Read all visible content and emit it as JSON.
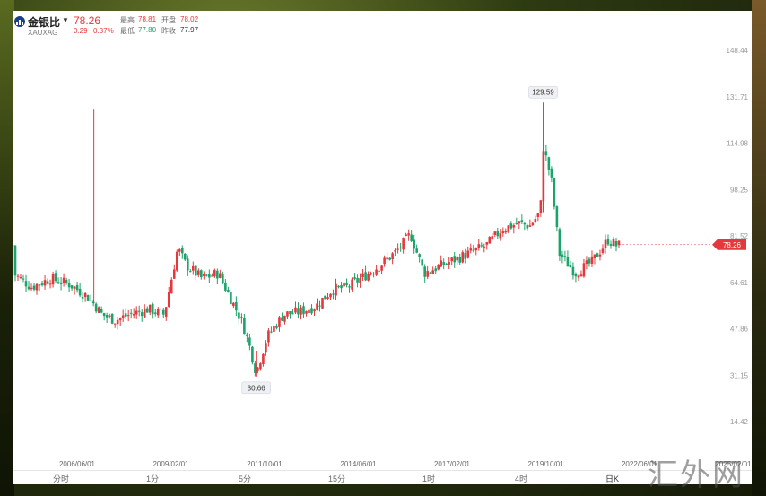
{
  "header": {
    "name": "金银比",
    "code": "XAUXAG",
    "price": "78.26",
    "change": "0.29",
    "change_pct": "0.37%",
    "high_label": "最高",
    "high": "78.81",
    "open_label": "开盘",
    "open": "78.02",
    "low_label": "最低",
    "low": "77.80",
    "prev_close_label": "昨收",
    "prev_close": "77.97"
  },
  "tabs": [
    "分时",
    "1分",
    "5分",
    "15分",
    "1时",
    "4时",
    "日K"
  ],
  "watermark": "汇外网",
  "colors": {
    "up": "#e4393c",
    "down": "#1aa36b",
    "accent": "#1a3e8c"
  },
  "chart_data": {
    "type": "candlestick",
    "y_ticks": [
      "148.44",
      "131.71",
      "114.98",
      "98.25",
      "81.52",
      "64.61",
      "47.86",
      "31.15",
      "14.42"
    ],
    "x_ticks": [
      "2006/06/01",
      "2009/02/01",
      "2011/10/01",
      "2014/06/01",
      "2017/02/01",
      "2019/10/01",
      "2022/06/01",
      "2025/02/01"
    ],
    "ylim": [
      14.42,
      148.44
    ],
    "current_price_label": "78.26",
    "annotations": [
      {
        "text": "129.59",
        "value": 129.59,
        "date": "2020/03"
      },
      {
        "text": "30.66",
        "value": 30.66,
        "date": "2011/05"
      }
    ],
    "close_path": [
      [
        "2003/11",
        68
      ],
      [
        "2004/06",
        63
      ],
      [
        "2005/01",
        66
      ],
      [
        "2005/08",
        64
      ],
      [
        "2006/02",
        60
      ],
      [
        "2006/05",
        57
      ],
      [
        "2006/08",
        53
      ],
      [
        "2007/01",
        51
      ],
      [
        "2007/06",
        53
      ],
      [
        "2008/01",
        55
      ],
      [
        "2008/07",
        53
      ],
      [
        "2008/12",
        77
      ],
      [
        "2009/03",
        71
      ],
      [
        "2009/09",
        66
      ],
      [
        "2010/03",
        68
      ],
      [
        "2010/07",
        60
      ],
      [
        "2010/12",
        50
      ],
      [
        "2011/03",
        40
      ],
      [
        "2011/05",
        32
      ],
      [
        "2011/09",
        45
      ],
      [
        "2012/03",
        53
      ],
      [
        "2012/09",
        54
      ],
      [
        "2013/03",
        56
      ],
      [
        "2013/09",
        62
      ],
      [
        "2014/03",
        63
      ],
      [
        "2014/09",
        67
      ],
      [
        "2015/03",
        71
      ],
      [
        "2015/09",
        76
      ],
      [
        "2016/02",
        82
      ],
      [
        "2016/07",
        68
      ],
      [
        "2017/02",
        71
      ],
      [
        "2017/09",
        74
      ],
      [
        "2018/06",
        78
      ],
      [
        "2018/12",
        84
      ],
      [
        "2019/06",
        86
      ],
      [
        "2019/10",
        85
      ],
      [
        "2020/02",
        90
      ],
      [
        "2020/03",
        114
      ],
      [
        "2020/06",
        102
      ],
      [
        "2020/09",
        75
      ],
      [
        "2021/03",
        68
      ],
      [
        "2021/09",
        72
      ],
      [
        "2022/03",
        80
      ],
      [
        "2022/06",
        78
      ]
    ],
    "spikes": [
      {
        "date": "2006/05",
        "low": 57,
        "high": 127
      },
      {
        "date": "2020/03",
        "low": 90,
        "high": 129.59
      },
      {
        "date": "2011/05",
        "low": 30.66,
        "high": 40
      }
    ],
    "grid": false
  }
}
